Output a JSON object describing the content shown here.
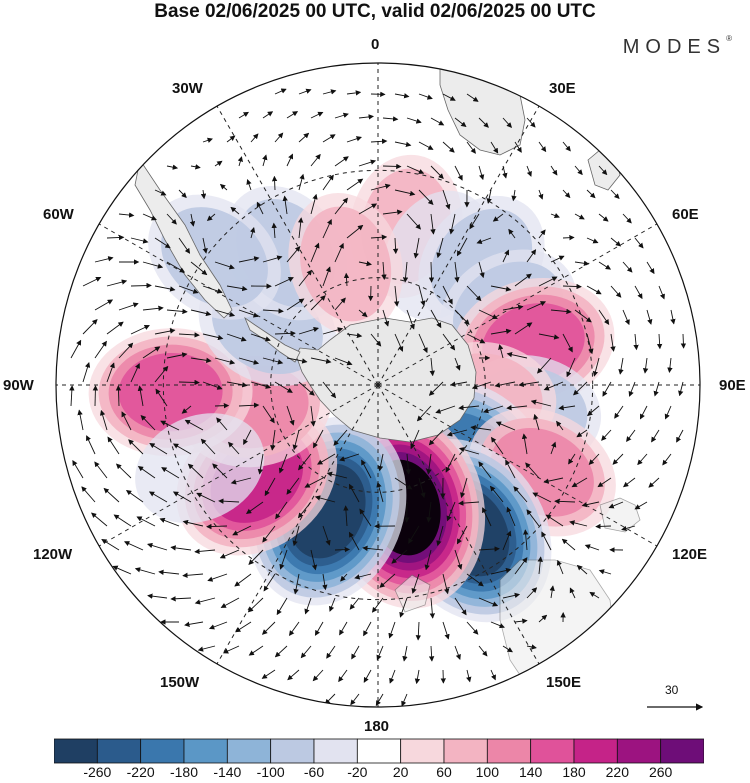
{
  "title": "Base 02/06/2025 00 UTC, valid 02/06/2025 00 UTC",
  "brand": {
    "name": "MODES",
    "mark": "®"
  },
  "map": {
    "projection": "south-polar-stereographic",
    "longitude_labels": {
      "lon_0": "0",
      "lon_30e": "30E",
      "lon_60e": "60E",
      "lon_90e": "90E",
      "lon_120e": "120E",
      "lon_150e": "150E",
      "lon_180": "180",
      "lon_150w": "150W",
      "lon_120w": "120W",
      "lon_90w": "90W",
      "lon_60w": "60W",
      "lon_30w": "30W"
    },
    "reference_vector": {
      "value": "30"
    }
  },
  "colorbar": {
    "colors": [
      "#1f3f63",
      "#2b5b8c",
      "#3a77ad",
      "#5b97c6",
      "#8eb4d8",
      "#bcc9e2",
      "#e2e3f0",
      "#ffffff",
      "#f7d8dd",
      "#f3b4c2",
      "#ec86a8",
      "#e0529a",
      "#c52388",
      "#9c1380",
      "#6e0d78"
    ],
    "tick_labels": [
      "-260",
      "-220",
      "-180",
      "-140",
      "-100",
      "-60",
      "-20",
      "20",
      "60",
      "100",
      "140",
      "180",
      "220",
      "260"
    ]
  },
  "anomaly_centers": [
    {
      "lon": 10,
      "lat": -45,
      "sign": "pos",
      "level": 2
    },
    {
      "lon": 25,
      "lat": -50,
      "sign": "neg",
      "level": 1
    },
    {
      "lon": 40,
      "lat": -45,
      "sign": "neg",
      "level": 2
    },
    {
      "lon": 60,
      "lat": -48,
      "sign": "neg",
      "level": 2
    },
    {
      "lon": 75,
      "lat": -45,
      "sign": "pos",
      "level": 4
    },
    {
      "lon": 100,
      "lat": -47,
      "sign": "neg",
      "level": 2
    },
    {
      "lon": 97,
      "lat": -60,
      "sign": "pos",
      "level": 2
    },
    {
      "lon": 128,
      "lat": -58,
      "sign": "neg",
      "level": 5
    },
    {
      "lon": 118,
      "lat": -38,
      "sign": "pos",
      "level": 3
    },
    {
      "lon": 148,
      "lat": -42,
      "sign": "neg",
      "level": 7
    },
    {
      "lon": 168,
      "lat": -55,
      "sign": "pos",
      "level": 8
    },
    {
      "lon": -158,
      "lat": -52,
      "sign": "neg",
      "level": 7
    },
    {
      "lon": -128,
      "lat": -47,
      "sign": "pos",
      "level": 5
    },
    {
      "lon": -100,
      "lat": -55,
      "sign": "pos",
      "level": 3
    },
    {
      "lon": -92,
      "lat": -32,
      "sign": "pos",
      "level": 4
    },
    {
      "lon": -62,
      "lat": -55,
      "sign": "neg",
      "level": 2
    },
    {
      "lon": -35,
      "lat": -45,
      "sign": "neg",
      "level": 2
    },
    {
      "lon": -15,
      "lat": -55,
      "sign": "pos",
      "level": 2
    },
    {
      "lon": -52,
      "lat": -32,
      "sign": "neg",
      "level": 2
    },
    {
      "lon": -115,
      "lat": -35,
      "sign": "neg",
      "level": 1
    }
  ]
}
